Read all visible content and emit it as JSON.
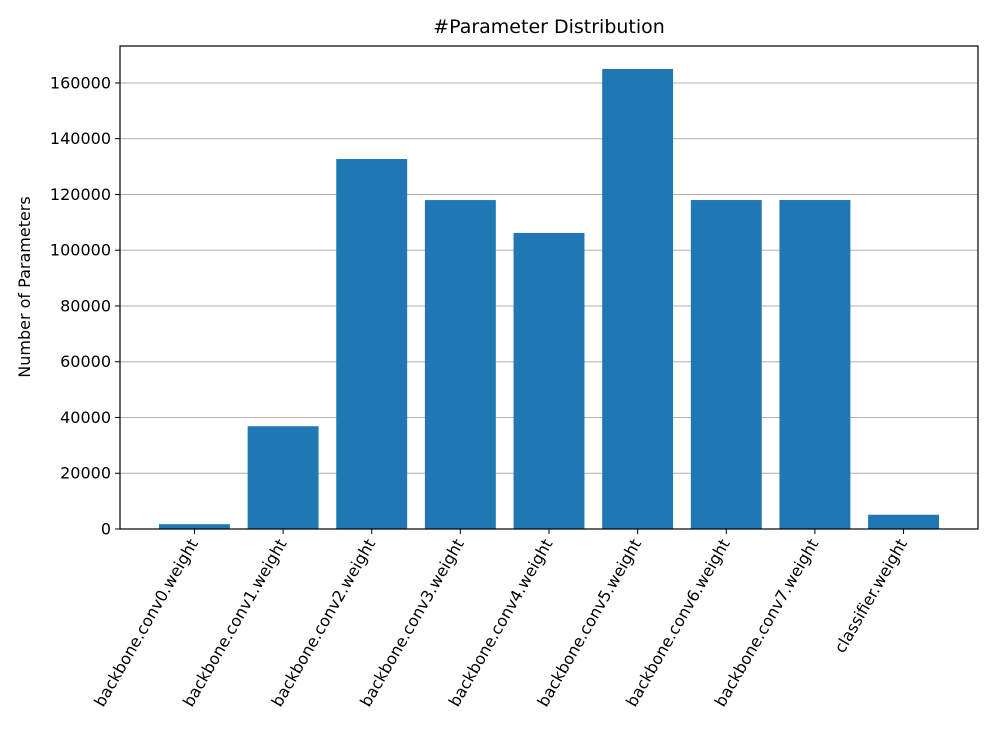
{
  "chart_data": {
    "type": "bar",
    "title": "#Parameter Distribution",
    "xlabel": "",
    "ylabel": "Number of Parameters",
    "categories": [
      "backbone.conv0.weight",
      "backbone.conv1.weight",
      "backbone.conv2.weight",
      "backbone.conv3.weight",
      "backbone.conv4.weight",
      "backbone.conv5.weight",
      "backbone.conv6.weight",
      "backbone.conv7.weight",
      "classifier.weight"
    ],
    "values": [
      1728,
      36864,
      132710,
      117984,
      106200,
      165000,
      118000,
      118000,
      5120
    ],
    "ylim": [
      0,
      173250
    ],
    "yticks": [
      0,
      20000,
      40000,
      60000,
      80000,
      100000,
      120000,
      140000,
      160000
    ],
    "grid": "horizontal",
    "colors": {
      "bar": "#1f77b4",
      "grid": "#b0b0b0",
      "axis": "#000000"
    }
  }
}
